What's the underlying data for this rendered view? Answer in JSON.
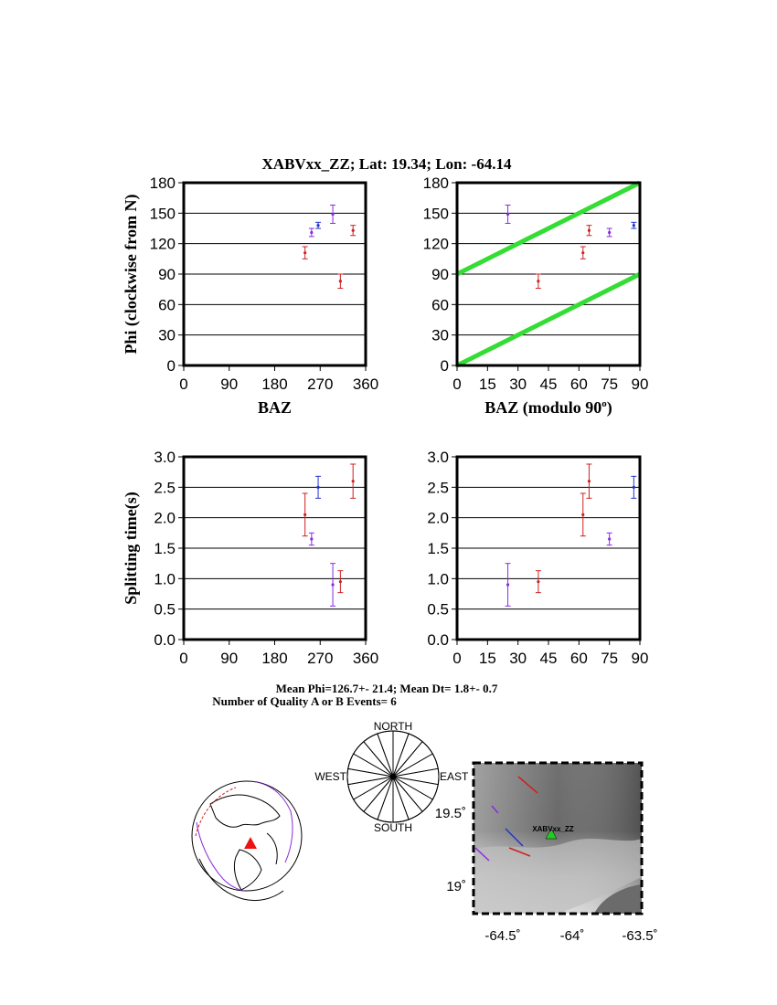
{
  "figure": {
    "title": "XABVxx_ZZ; Lat:  19.34;  Lon:  -64.14",
    "summary_line1": "Mean Phi=126.7+- 21.4; Mean Dt=  1.8+-  0.7",
    "summary_line2": "Number of Quality A or B Events=  6"
  },
  "colors": {
    "red": "#cc2222",
    "purple": "#8a2be2",
    "blue": "#2233cc",
    "reference_line": "#33dd33",
    "station_marker": "#22cc22",
    "globe_marker": "#ee1111"
  },
  "chart_data": [
    {
      "id": "phi_vs_baz",
      "type": "scatter",
      "xlabel": "BAZ",
      "ylabel": "Phi (clockwise from N)",
      "xlim": [
        0,
        360
      ],
      "ylim": [
        0,
        180
      ],
      "xticks": [
        "0",
        "90",
        "180",
        "270",
        "360"
      ],
      "yticks": [
        "0",
        "30",
        "60",
        "90",
        "120",
        "150",
        "180"
      ],
      "grid": "horizontal",
      "points": [
        {
          "x": 240,
          "y": 111,
          "err": 6,
          "color": "red"
        },
        {
          "x": 253,
          "y": 131,
          "err": 4,
          "color": "purple"
        },
        {
          "x": 266,
          "y": 138,
          "err": 3,
          "color": "blue"
        },
        {
          "x": 295,
          "y": 149,
          "err": 9,
          "color": "purple"
        },
        {
          "x": 310,
          "y": 83,
          "err": 7,
          "color": "red"
        },
        {
          "x": 335,
          "y": 133,
          "err": 5,
          "color": "red"
        }
      ]
    },
    {
      "id": "phi_vs_baz_mod90",
      "type": "scatter",
      "xlabel": "BAZ (modulo 90",
      "xlabel_sup": "o",
      "xlabel_end": ")",
      "xlim": [
        0,
        90
      ],
      "ylim": [
        0,
        180
      ],
      "xticks": [
        "0",
        "15",
        "30",
        "45",
        "60",
        "75",
        "90"
      ],
      "yticks": [
        "0",
        "30",
        "60",
        "90",
        "120",
        "150",
        "180"
      ],
      "grid": "horizontal",
      "lines": [
        {
          "x": [
            0,
            90
          ],
          "y": [
            0,
            90
          ]
        },
        {
          "x": [
            0,
            90
          ],
          "y": [
            90,
            180
          ]
        }
      ],
      "points": [
        {
          "x": 25,
          "y": 149,
          "err": 9,
          "color": "purple"
        },
        {
          "x": 40,
          "y": 83,
          "err": 7,
          "color": "red"
        },
        {
          "x": 62,
          "y": 111,
          "err": 6,
          "color": "red"
        },
        {
          "x": 65,
          "y": 133,
          "err": 5,
          "color": "red"
        },
        {
          "x": 75,
          "y": 131,
          "err": 4,
          "color": "purple"
        },
        {
          "x": 87,
          "y": 138,
          "err": 3,
          "color": "blue"
        }
      ]
    },
    {
      "id": "dt_vs_baz",
      "type": "scatter",
      "ylabel": "Splitting time(s)",
      "xlim": [
        0,
        360
      ],
      "ylim": [
        0,
        3
      ],
      "xticks": [
        "0",
        "90",
        "180",
        "270",
        "360"
      ],
      "yticks": [
        "0.0",
        "0.5",
        "1.0",
        "1.5",
        "2.0",
        "2.5",
        "3.0"
      ],
      "grid": "horizontal",
      "points": [
        {
          "x": 240,
          "y": 2.05,
          "err": 0.35,
          "color": "red"
        },
        {
          "x": 253,
          "y": 1.65,
          "err": 0.1,
          "color": "purple"
        },
        {
          "x": 266,
          "y": 2.5,
          "err": 0.18,
          "color": "blue"
        },
        {
          "x": 295,
          "y": 0.9,
          "err": 0.35,
          "color": "purple"
        },
        {
          "x": 310,
          "y": 0.95,
          "err": 0.18,
          "color": "red"
        },
        {
          "x": 335,
          "y": 2.6,
          "err": 0.28,
          "color": "red"
        }
      ]
    },
    {
      "id": "dt_vs_baz_mod90",
      "type": "scatter",
      "xlim": [
        0,
        90
      ],
      "ylim": [
        0,
        3
      ],
      "xticks": [
        "0",
        "15",
        "30",
        "45",
        "60",
        "75",
        "90"
      ],
      "yticks": [
        "0.0",
        "0.5",
        "1.0",
        "1.5",
        "2.0",
        "2.5",
        "3.0"
      ],
      "grid": "horizontal",
      "points": [
        {
          "x": 25,
          "y": 0.9,
          "err": 0.35,
          "color": "purple"
        },
        {
          "x": 40,
          "y": 0.95,
          "err": 0.18,
          "color": "red"
        },
        {
          "x": 62,
          "y": 2.05,
          "err": 0.35,
          "color": "red"
        },
        {
          "x": 65,
          "y": 2.6,
          "err": 0.28,
          "color": "red"
        },
        {
          "x": 75,
          "y": 1.65,
          "err": 0.1,
          "color": "purple"
        },
        {
          "x": 87,
          "y": 2.5,
          "err": 0.18,
          "color": "blue"
        }
      ]
    }
  ],
  "rose": {
    "labels": {
      "north": "NORTH",
      "south": "SOUTH",
      "east": "EAST",
      "west": "WEST"
    },
    "bin_width_deg": 20,
    "filled_bins_deg": [
      110,
      130,
      290,
      310
    ]
  },
  "map": {
    "station_label": "XABVxx_ZZ",
    "x_ticks": [
      "-64.5˚",
      "-64˚",
      "-63.5˚"
    ],
    "y_ticks": [
      "19.5˚",
      "19˚"
    ],
    "station": {
      "lon": -64.14,
      "lat": 19.34
    }
  }
}
